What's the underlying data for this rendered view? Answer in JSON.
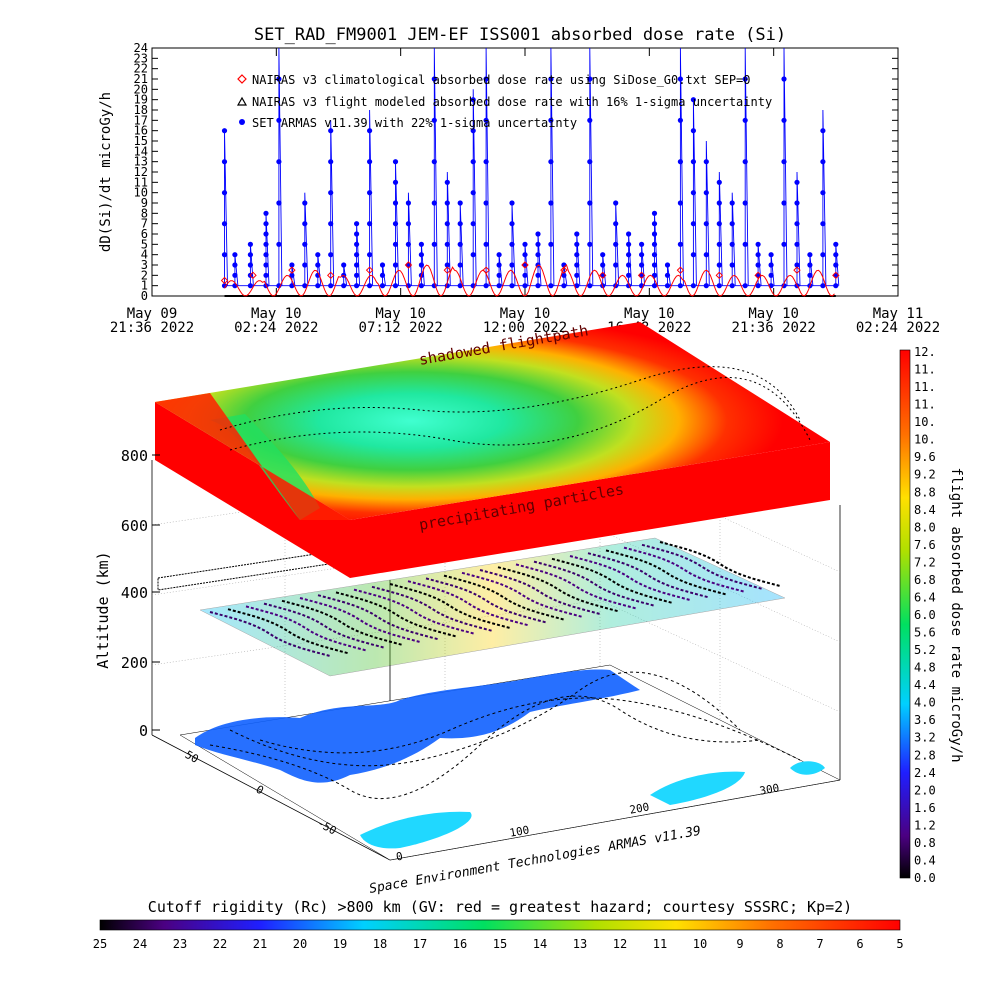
{
  "colors": {
    "nairas_climatological": "#ff0000",
    "nairas_flight": "#000000",
    "armas": "#0000ff",
    "background": "#ffffff"
  },
  "top_chart": {
    "title": "SET_RAD_FM9001  JEM-EF ISS001 absorbed dose rate (Si)",
    "ylabel": "dD(Si)/dt microGy/h",
    "yticks": [
      "0",
      "1",
      "2",
      "3",
      "4",
      "5",
      "6",
      "7",
      "8",
      "9",
      "10",
      "11",
      "12",
      "13",
      "14",
      "15",
      "16",
      "17",
      "18",
      "19",
      "20",
      "21",
      "22",
      "23",
      "24"
    ],
    "xticks": [
      {
        "l1": "May 09",
        "l2": "21:36 2022"
      },
      {
        "l1": "May 10",
        "l2": "02:24 2022"
      },
      {
        "l1": "May 10",
        "l2": "07:12 2022"
      },
      {
        "l1": "May 10",
        "l2": "12:00 2022"
      },
      {
        "l1": "May 10",
        "l2": "16:48 2022"
      },
      {
        "l1": "May 10",
        "l2": "21:36 2022"
      },
      {
        "l1": "May 11",
        "l2": "02:24 2022"
      }
    ],
    "legend": [
      {
        "label": "NAIRAS v3 climatological absorbed dose rate using SiDose_G0.txt SEP=0",
        "marker": "diamond-icon",
        "color": "#ff0000"
      },
      {
        "label": "NAIRAS v3 flight modeled absorbed dose rate with 16% 1-sigma uncertainty",
        "marker": "triangle-icon",
        "color": "#000000"
      },
      {
        "label": "SET ARMAS v11.39 with 22% 1-sigma uncertainty",
        "marker": "dot-icon",
        "color": "#0000ff"
      }
    ]
  },
  "chart_data": [
    {
      "type": "line",
      "title": "SET_RAD_FM9001  JEM-EF ISS001 absorbed dose rate (Si)",
      "ylabel": "dD(Si)/dt microGy/h",
      "ylim": [
        0,
        24
      ],
      "xlim": [
        "2022-05-09 21:36",
        "2022-05-11 02:24"
      ],
      "grid": false,
      "legend_position": "top-left",
      "series": [
        {
          "name": "SET ARMAS v11.39 with 22% 1-sigma uncertainty",
          "color": "#0000ff",
          "x": [
            "2022-05-10 00:24",
            "2022-05-10 00:48",
            "2022-05-10 01:24",
            "2022-05-10 02:00",
            "2022-05-10 02:30",
            "2022-05-10 03:00",
            "2022-05-10 03:30",
            "2022-05-10 04:00",
            "2022-05-10 04:30",
            "2022-05-10 05:00",
            "2022-05-10 05:30",
            "2022-05-10 06:00",
            "2022-05-10 06:30",
            "2022-05-10 07:00",
            "2022-05-10 07:30",
            "2022-05-10 08:00",
            "2022-05-10 08:30",
            "2022-05-10 09:00",
            "2022-05-10 09:30",
            "2022-05-10 10:00",
            "2022-05-10 10:30",
            "2022-05-10 11:00",
            "2022-05-10 11:30",
            "2022-05-10 12:00",
            "2022-05-10 12:30",
            "2022-05-10 13:00",
            "2022-05-10 13:30",
            "2022-05-10 14:00",
            "2022-05-10 14:30",
            "2022-05-10 15:00",
            "2022-05-10 15:30",
            "2022-05-10 16:00",
            "2022-05-10 16:30",
            "2022-05-10 17:00",
            "2022-05-10 17:30",
            "2022-05-10 18:00",
            "2022-05-10 18:30",
            "2022-05-10 19:00",
            "2022-05-10 19:30",
            "2022-05-10 20:00",
            "2022-05-10 20:30",
            "2022-05-10 21:00",
            "2022-05-10 21:30",
            "2022-05-10 22:00",
            "2022-05-10 22:30",
            "2022-05-10 23:00",
            "2022-05-10 23:30",
            "2022-05-11 00:00"
          ],
          "values": [
            16,
            4,
            5,
            8,
            24,
            3,
            10,
            4,
            17,
            3,
            7,
            18,
            3,
            13,
            10,
            5,
            24,
            12,
            9,
            20,
            24,
            4,
            9,
            5,
            6,
            24,
            3,
            6,
            24,
            4,
            9,
            6,
            5,
            8,
            3,
            24,
            19,
            15,
            12,
            10,
            24,
            5,
            4,
            24,
            12,
            4,
            18,
            5
          ]
        },
        {
          "name": "NAIRAS v3 climatological absorbed dose rate using SiDose_G0.txt SEP=0",
          "color": "#ff0000",
          "x": [
            "2022-05-10 00:24",
            "2022-05-10 01:30",
            "2022-05-10 03:00",
            "2022-05-10 04:30",
            "2022-05-10 06:00",
            "2022-05-10 07:30",
            "2022-05-10 09:00",
            "2022-05-10 10:30",
            "2022-05-10 12:00",
            "2022-05-10 13:30",
            "2022-05-10 15:00",
            "2022-05-10 16:30",
            "2022-05-10 18:00",
            "2022-05-10 19:30",
            "2022-05-10 21:00",
            "2022-05-10 22:30",
            "2022-05-11 00:00"
          ],
          "values": [
            1.5,
            2,
            2.5,
            2,
            2.5,
            3,
            2.5,
            2.5,
            3,
            2.5,
            2,
            2,
            2.5,
            2,
            2,
            2.5,
            2
          ]
        },
        {
          "name": "NAIRAS v3 flight modeled absorbed dose rate with 16% 1-sigma uncertainty",
          "color": "#000000",
          "x": [
            "2022-05-10 00:24",
            "2022-05-10 06:00",
            "2022-05-10 12:00",
            "2022-05-10 18:00",
            "2022-05-11 00:00"
          ],
          "values": [
            0,
            0,
            0,
            0,
            0
          ]
        }
      ]
    },
    {
      "type": "heatmap",
      "zlabel": "Altitude (km)",
      "zticks": [
        "0",
        "200",
        "400",
        "600",
        "800"
      ],
      "xticks": [
        "0",
        "100",
        "200",
        "300"
      ],
      "yticks": [
        "-50",
        "0",
        "50"
      ],
      "annotations": [
        "shadowed flightpath",
        "precipitating particles"
      ],
      "credit": "Space Environment Technologies ARMAS v11.39",
      "colorbar": {
        "label": "flight absorbed dose rate microGy/h",
        "range": [
          0.0,
          12.0
        ],
        "ticks": [
          "0.0",
          "0.4",
          "0.8",
          "1.2",
          "1.6",
          "2.0",
          "2.4",
          "2.8",
          "3.2",
          "3.6",
          "4.0",
          "4.4",
          "4.8",
          "5.2",
          "5.6",
          "6.0",
          "6.4",
          "6.8",
          "7.2",
          "7.6",
          "8.0",
          "8.4",
          "8.8",
          "9.2",
          "9.6",
          "10.",
          "10.",
          "11.",
          "11.",
          "11.",
          "12."
        ]
      },
      "cutoff_colorbar": {
        "label": "Cutoff rigidity (Rc) >800 km (GV: red = greatest hazard; courtesy SSSRC; Kp=2)",
        "ticks": [
          "25",
          "24",
          "23",
          "22",
          "21",
          "20",
          "19",
          "18",
          "17",
          "16",
          "15",
          "14",
          "13",
          "12",
          "11",
          "10",
          "9",
          "8",
          "7",
          "6",
          "5"
        ]
      }
    }
  ]
}
